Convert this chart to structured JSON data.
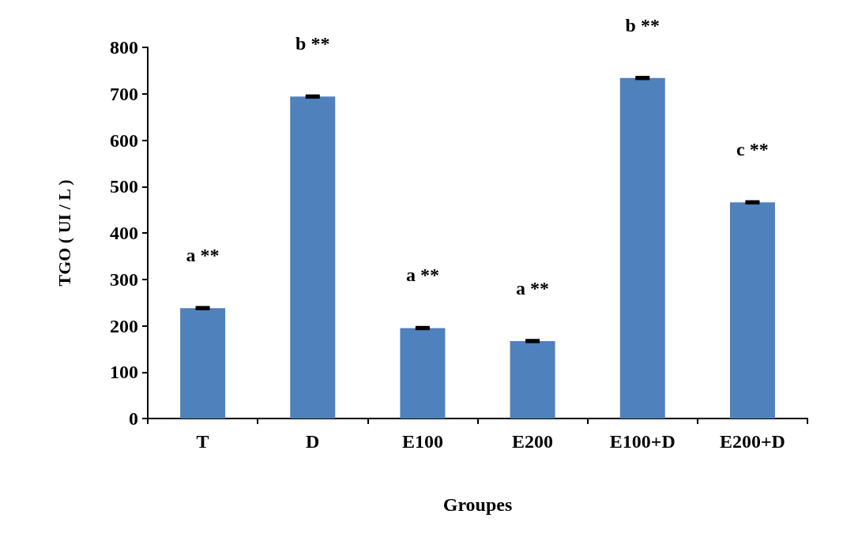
{
  "chart_data": {
    "type": "bar",
    "xlabel": "Groupes",
    "ylabel": "TGO ( UI / L )",
    "categories": [
      "T",
      "D",
      "E100",
      "E200",
      "E100+D",
      "E200+D"
    ],
    "values": [
      238,
      694,
      195,
      167,
      734,
      466
    ],
    "errors": [
      2,
      2,
      2,
      2,
      2,
      2
    ],
    "color": "#4f81bd",
    "ylim": [
      0,
      800
    ],
    "yticks": [
      0,
      100,
      200,
      300,
      400,
      500,
      600,
      700,
      800
    ],
    "grid": false,
    "annotations": [
      "a **",
      "b **",
      "a **",
      "a **",
      "b **",
      "c **"
    ]
  }
}
